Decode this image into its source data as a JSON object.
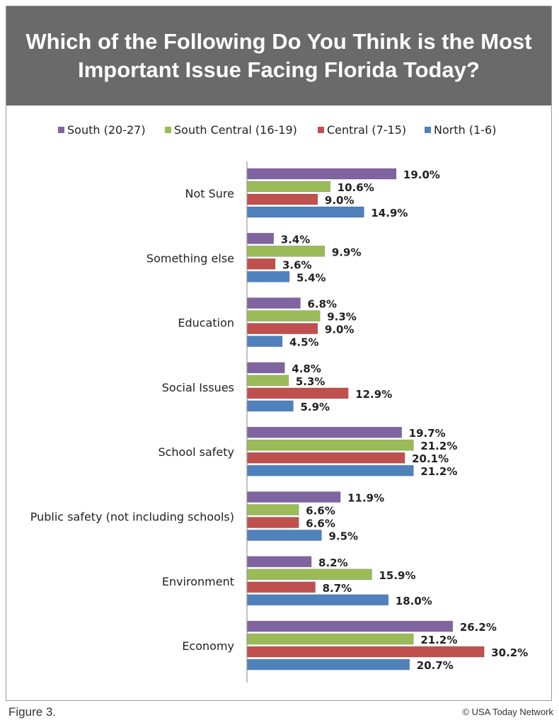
{
  "header": {
    "title": "Which of the Following Do You Think is the Most Important Issue Facing Florida Today?"
  },
  "footer": {
    "caption": "Figure 3.",
    "credit": "© USA Today Network"
  },
  "chart_data": {
    "type": "bar",
    "orientation": "horizontal",
    "categories": [
      "Not Sure",
      "Something else",
      "Education",
      "Social Issues",
      "School safety",
      "Public safety (not including schools)",
      "Environment",
      "Economy"
    ],
    "series": [
      {
        "name": "South (20-27)",
        "color": "#8064a2",
        "values": [
          19.0,
          3.4,
          6.8,
          4.8,
          19.7,
          11.9,
          8.2,
          26.2
        ],
        "labels": [
          "19.0%",
          "3.4%",
          "6.8%",
          "4.8%",
          "19.7%",
          "11.9%",
          "8.2%",
          "26.2%"
        ]
      },
      {
        "name": "South Central (16-19)",
        "color": "#9bbb59",
        "values": [
          10.6,
          9.9,
          9.3,
          5.3,
          21.2,
          6.6,
          15.9,
          21.2
        ],
        "labels": [
          "10.6%",
          "9.9%",
          "9.3%",
          "5.3%",
          "21.2%",
          "6.6%",
          "15.9%",
          "21.2%"
        ]
      },
      {
        "name": "Central (7-15)",
        "color": "#c0504d",
        "values": [
          9.0,
          3.6,
          9.0,
          12.9,
          20.1,
          6.6,
          8.7,
          30.2
        ],
        "labels": [
          "9.0%",
          "3.6%",
          "9.0%",
          "12.9%",
          "20.1%",
          "6.6%",
          "8.7%",
          "30.2%"
        ]
      },
      {
        "name": "North (1-6)",
        "color": "#4f81bd",
        "values": [
          14.9,
          5.4,
          4.5,
          5.9,
          21.2,
          9.5,
          18.0,
          20.7
        ],
        "labels": [
          "14.9%",
          "5.4%",
          "4.5%",
          "5.9%",
          "21.2%",
          "9.5%",
          "18.0%",
          "20.7%"
        ]
      }
    ],
    "legend_position": "top",
    "grid": false
  }
}
